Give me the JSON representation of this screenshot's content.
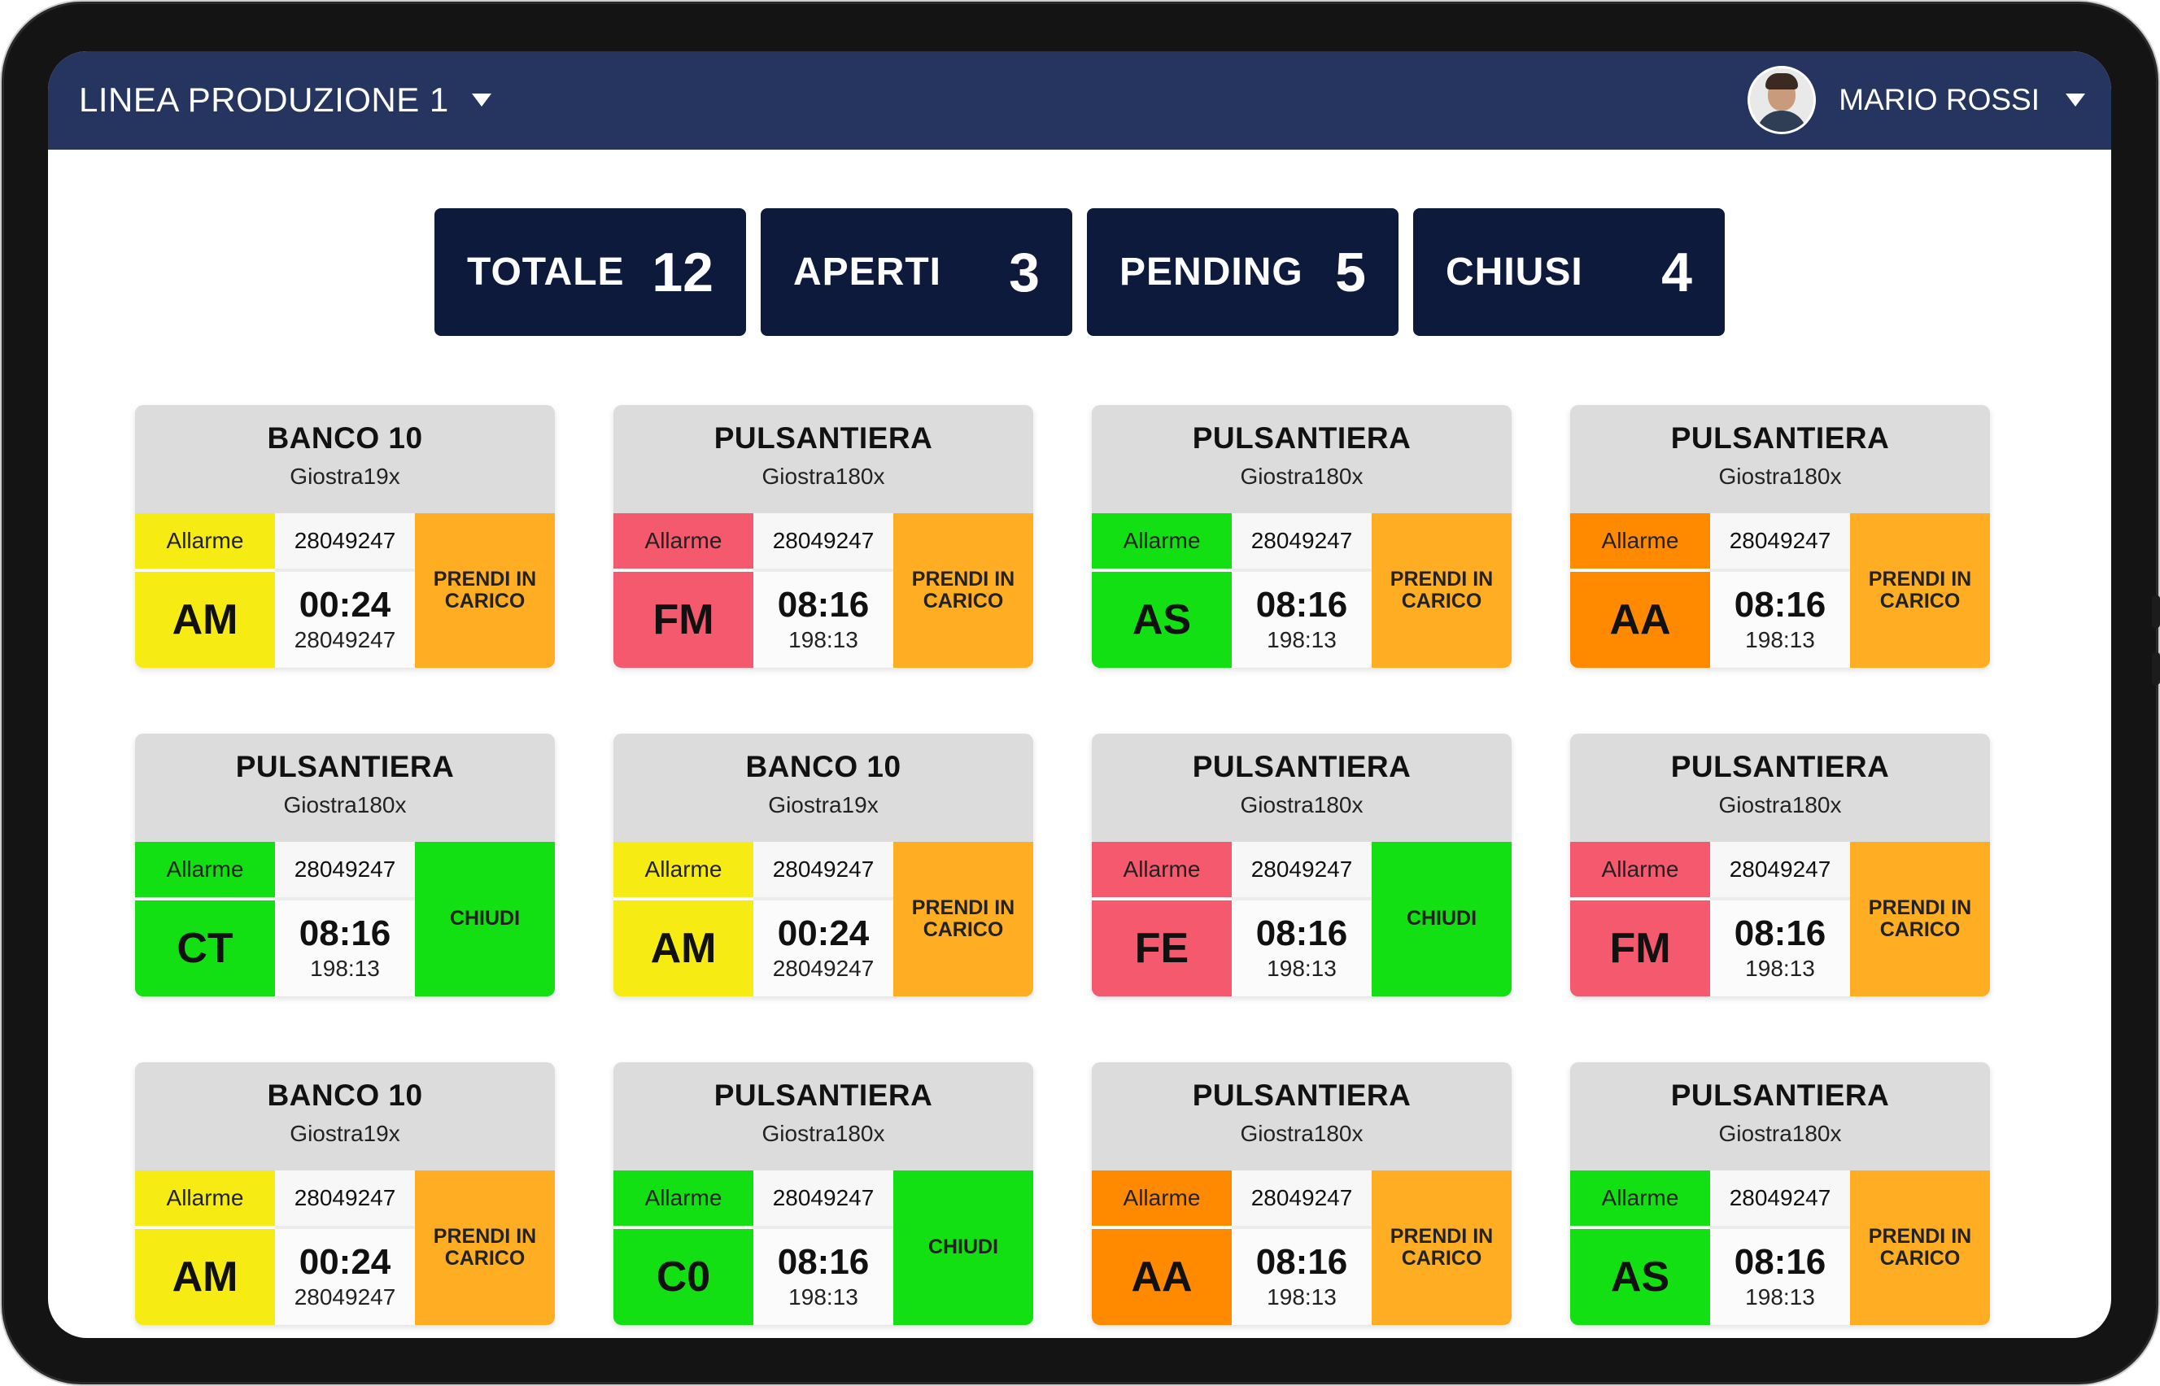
{
  "header": {
    "line_title": "LINEA PRODUZIONE 1",
    "user_name": "MARIO ROSSI"
  },
  "stats": [
    {
      "label": "TOTALE",
      "value": "12"
    },
    {
      "label": "APERTI",
      "value": "3"
    },
    {
      "label": "PENDING",
      "value": "5"
    },
    {
      "label": "CHIUSI",
      "value": "4"
    }
  ],
  "colors": {
    "yellow": "#f6ec14",
    "red": "#f5596e",
    "green": "#12e012",
    "orange": "#ff8a00",
    "action_orange": "#ffad22",
    "action_green": "#12e012",
    "header": "#253560",
    "stat_bg": "#0e1a3c"
  },
  "cards": [
    {
      "title": "BANCO 10",
      "sub": "Giostra19x",
      "alarm_label": "Allarme",
      "code": "AM",
      "ticket": "28049247",
      "time": "00:24",
      "duration": "28049247",
      "action": "PRENDI IN CARICO",
      "color": "yellow",
      "action_color": "action_orange"
    },
    {
      "title": "PULSANTIERA",
      "sub": "Giostra180x",
      "alarm_label": "Allarme",
      "code": "FM",
      "ticket": "28049247",
      "time": "08:16",
      "duration": "198:13",
      "action": "PRENDI IN CARICO",
      "color": "red",
      "action_color": "action_orange"
    },
    {
      "title": "PULSANTIERA",
      "sub": "Giostra180x",
      "alarm_label": "Allarme",
      "code": "AS",
      "ticket": "28049247",
      "time": "08:16",
      "duration": "198:13",
      "action": "PRENDI IN CARICO",
      "color": "green",
      "action_color": "action_orange"
    },
    {
      "title": "PULSANTIERA",
      "sub": "Giostra180x",
      "alarm_label": "Allarme",
      "code": "AA",
      "ticket": "28049247",
      "time": "08:16",
      "duration": "198:13",
      "action": "PRENDI IN CARICO",
      "color": "orange",
      "action_color": "action_orange"
    },
    {
      "title": "PULSANTIERA",
      "sub": "Giostra180x",
      "alarm_label": "Allarme",
      "code": "CT",
      "ticket": "28049247",
      "time": "08:16",
      "duration": "198:13",
      "action": "CHIUDI",
      "color": "green",
      "action_color": "action_green"
    },
    {
      "title": "BANCO 10",
      "sub": "Giostra19x",
      "alarm_label": "Allarme",
      "code": "AM",
      "ticket": "28049247",
      "time": "00:24",
      "duration": "28049247",
      "action": "PRENDI IN CARICO",
      "color": "yellow",
      "action_color": "action_orange"
    },
    {
      "title": "PULSANTIERA",
      "sub": "Giostra180x",
      "alarm_label": "Allarme",
      "code": "FE",
      "ticket": "28049247",
      "time": "08:16",
      "duration": "198:13",
      "action": "CHIUDI",
      "color": "red",
      "action_color": "action_green"
    },
    {
      "title": "PULSANTIERA",
      "sub": "Giostra180x",
      "alarm_label": "Allarme",
      "code": "FM",
      "ticket": "28049247",
      "time": "08:16",
      "duration": "198:13",
      "action": "PRENDI IN CARICO",
      "color": "red",
      "action_color": "action_orange"
    },
    {
      "title": "BANCO 10",
      "sub": "Giostra19x",
      "alarm_label": "Allarme",
      "code": "AM",
      "ticket": "28049247",
      "time": "00:24",
      "duration": "28049247",
      "action": "PRENDI IN CARICO",
      "color": "yellow",
      "action_color": "action_orange"
    },
    {
      "title": "PULSANTIERA",
      "sub": "Giostra180x",
      "alarm_label": "Allarme",
      "code": "C0",
      "ticket": "28049247",
      "time": "08:16",
      "duration": "198:13",
      "action": "CHIUDI",
      "color": "green",
      "action_color": "action_green"
    },
    {
      "title": "PULSANTIERA",
      "sub": "Giostra180x",
      "alarm_label": "Allarme",
      "code": "AA",
      "ticket": "28049247",
      "time": "08:16",
      "duration": "198:13",
      "action": "PRENDI IN CARICO",
      "color": "orange",
      "action_color": "action_orange"
    },
    {
      "title": "PULSANTIERA",
      "sub": "Giostra180x",
      "alarm_label": "Allarme",
      "code": "AS",
      "ticket": "28049247",
      "time": "08:16",
      "duration": "198:13",
      "action": "PRENDI IN CARICO",
      "color": "green",
      "action_color": "action_orange"
    }
  ]
}
